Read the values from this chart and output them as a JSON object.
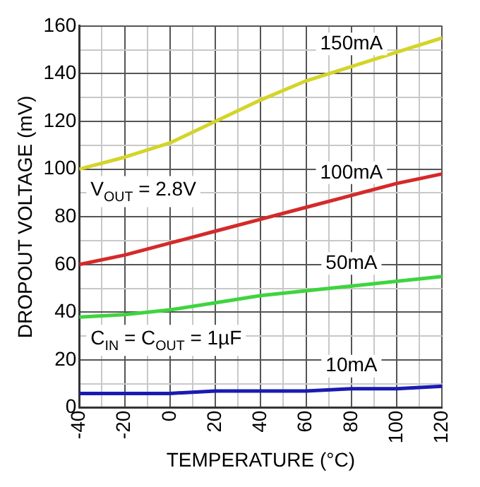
{
  "chart_data": {
    "type": "line",
    "xlabel": "TEMPERATURE (°C)",
    "ylabel": "DROPOUT VOLTAGE (mV)",
    "x": [
      -40,
      -20,
      0,
      20,
      40,
      60,
      80,
      100,
      120
    ],
    "series": [
      {
        "name": "150mA",
        "color": "#d4d42a",
        "values": [
          100,
          105,
          111,
          120,
          129,
          137,
          143,
          149,
          155
        ]
      },
      {
        "name": "100mA",
        "color": "#d42a2a",
        "values": [
          60,
          64,
          69,
          74,
          79,
          84,
          89,
          94,
          98
        ]
      },
      {
        "name": "50mA",
        "color": "#3fd43f",
        "values": [
          38,
          39,
          41,
          44,
          47,
          49,
          51,
          53,
          55
        ]
      },
      {
        "name": "10mA",
        "color": "#1a1ab4",
        "values": [
          6,
          6,
          6,
          7,
          7,
          7,
          8,
          8,
          9
        ]
      }
    ],
    "xlim": [
      -40,
      120
    ],
    "xticks": [
      -40,
      {
        "value": -30,
        "label": null
      },
      -20,
      {
        "value": -10,
        "label": null
      },
      0,
      {
        "value": 10,
        "label": null
      },
      20,
      {
        "value": 30,
        "label": null
      },
      40,
      {
        "value": 50,
        "label": null
      },
      60,
      {
        "value": 70,
        "label": null
      },
      80,
      {
        "value": 90,
        "label": null
      },
      100,
      {
        "value": 110,
        "label": null
      },
      120
    ],
    "ylim": [
      0,
      160
    ],
    "yticks": [
      0,
      {
        "value": 10,
        "label": null
      },
      20,
      {
        "value": 30,
        "label": null
      },
      40,
      {
        "value": 50,
        "label": null
      },
      60,
      {
        "value": 70,
        "label": null
      },
      80,
      {
        "value": 90,
        "label": null
      },
      100,
      {
        "value": 110,
        "label": null
      },
      120,
      {
        "value": 130,
        "label": null
      },
      140,
      {
        "value": 150,
        "label": null
      },
      160
    ],
    "grid": true,
    "legend": false,
    "marker": "none",
    "line_style": "solid",
    "annotations": [
      "V$_{OUT}$ = 2.8V",
      "C$_{IN}$ = C$_{OUT}$ = 1µF"
    ]
  }
}
